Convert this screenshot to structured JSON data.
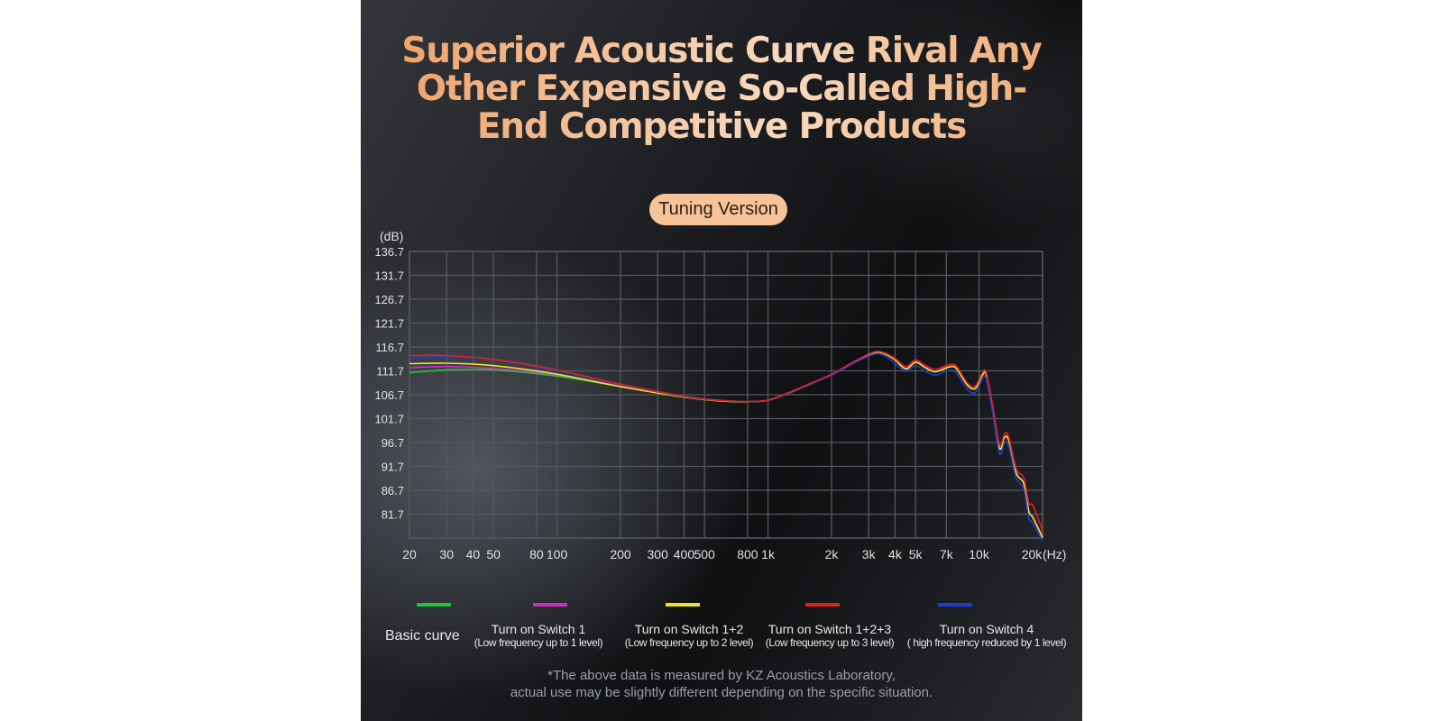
{
  "title": "Superior Acoustic Curve Rival Any Other Expensive So-Called High-End Competitive Products",
  "badge": "Tuning Version",
  "colors": {
    "title_gradient": [
      "#f0a36a",
      "#f8d9bd"
    ],
    "badge_bg": "#f7c49a",
    "grid": "#55585e",
    "axis_text": "#e0e0e0"
  },
  "chart_data": {
    "type": "line",
    "y_unit_label": "(dB)",
    "x_unit_label": "(Hz)",
    "x_scale": "log",
    "xlim": [
      20,
      20000
    ],
    "ylim": [
      76.7,
      136.7
    ],
    "grid": true,
    "y_ticks": [
      136.7,
      131.7,
      126.7,
      121.7,
      116.7,
      111.7,
      106.7,
      101.7,
      96.7,
      91.7,
      86.7,
      81.7
    ],
    "x_ticks": [
      {
        "value": 20,
        "label": "20"
      },
      {
        "value": 30,
        "label": "30"
      },
      {
        "value": 40,
        "label": "40"
      },
      {
        "value": 50,
        "label": "50"
      },
      {
        "value": 80,
        "label": "80"
      },
      {
        "value": 100,
        "label": "100"
      },
      {
        "value": 200,
        "label": "200"
      },
      {
        "value": 300,
        "label": "300"
      },
      {
        "value": 400,
        "label": "400"
      },
      {
        "value": 500,
        "label": "500"
      },
      {
        "value": 800,
        "label": "800"
      },
      {
        "value": 1000,
        "label": "1k"
      },
      {
        "value": 2000,
        "label": "2k"
      },
      {
        "value": 3000,
        "label": "3k"
      },
      {
        "value": 4000,
        "label": "4k"
      },
      {
        "value": 5000,
        "label": "5k"
      },
      {
        "value": 7000,
        "label": "7k"
      },
      {
        "value": 10000,
        "label": "10k"
      },
      {
        "value": 20000,
        "label": "20k"
      }
    ],
    "series": [
      {
        "name": "Basic curve",
        "color": "#22c43a",
        "points": [
          [
            20,
            111.3
          ],
          [
            30,
            111.9
          ],
          [
            50,
            111.9
          ],
          [
            100,
            110.6
          ],
          [
            200,
            108.4
          ],
          [
            400,
            106.2
          ],
          [
            600,
            105.4
          ],
          [
            900,
            105.3
          ],
          [
            1100,
            106.1
          ],
          [
            1500,
            108.5
          ],
          [
            2000,
            110.9
          ],
          [
            2500,
            113.3
          ],
          [
            3000,
            115.0
          ],
          [
            3300,
            115.6
          ],
          [
            3600,
            115.2
          ],
          [
            4000,
            114.0
          ],
          [
            4500,
            112.1
          ],
          [
            5000,
            113.5
          ],
          [
            5500,
            112.5
          ],
          [
            6200,
            111.5
          ],
          [
            7200,
            112.5
          ],
          [
            7800,
            112.2
          ],
          [
            8800,
            108.7
          ],
          [
            9600,
            108.0
          ],
          [
            10300,
            110.6
          ],
          [
            10800,
            110.9
          ],
          [
            11600,
            104.0
          ],
          [
            12500,
            95.5
          ],
          [
            13200,
            97.7
          ],
          [
            13800,
            97.2
          ],
          [
            15000,
            90.3
          ],
          [
            16300,
            88.1
          ],
          [
            17200,
            82.3
          ],
          [
            18000,
            81.0
          ],
          [
            20000,
            76.8
          ]
        ]
      },
      {
        "name": "Turn on Switch 1",
        "sub": "(Low frequency up to 1 level)",
        "color": "#cc2fc6",
        "points": [
          [
            20,
            112.4
          ],
          [
            30,
            112.6
          ],
          [
            50,
            112.2
          ],
          [
            100,
            110.9
          ],
          [
            200,
            108.5
          ],
          [
            400,
            106.3
          ],
          [
            600,
            105.5
          ],
          [
            900,
            105.3
          ],
          [
            1100,
            106.1
          ],
          [
            1500,
            108.5
          ],
          [
            2000,
            110.9
          ],
          [
            2500,
            113.3
          ],
          [
            3000,
            115.1
          ],
          [
            3300,
            115.7
          ],
          [
            3600,
            115.3
          ],
          [
            4000,
            114.1
          ],
          [
            4500,
            112.2
          ],
          [
            5000,
            113.6
          ],
          [
            5500,
            112.6
          ],
          [
            6200,
            111.6
          ],
          [
            7200,
            112.6
          ],
          [
            7800,
            112.3
          ],
          [
            8800,
            108.8
          ],
          [
            9600,
            108.1
          ],
          [
            10300,
            110.7
          ],
          [
            10800,
            111.0
          ],
          [
            11600,
            104.1
          ],
          [
            12500,
            95.6
          ],
          [
            13200,
            97.8
          ],
          [
            13800,
            97.3
          ],
          [
            15000,
            90.4
          ],
          [
            16300,
            88.2
          ],
          [
            17200,
            82.4
          ],
          [
            18000,
            81.1
          ],
          [
            20000,
            77.0
          ]
        ]
      },
      {
        "name": "Turn on Switch 1+2",
        "sub": "(Low frequency up to 2 level)",
        "color": "#f0e22a",
        "points": [
          [
            20,
            113.2
          ],
          [
            30,
            113.3
          ],
          [
            50,
            112.8
          ],
          [
            100,
            111.0
          ],
          [
            200,
            108.4
          ],
          [
            400,
            106.2
          ],
          [
            600,
            105.4
          ],
          [
            900,
            105.3
          ],
          [
            1100,
            106.1
          ],
          [
            1500,
            108.5
          ],
          [
            2000,
            110.9
          ],
          [
            2500,
            113.3
          ],
          [
            3000,
            115.0
          ],
          [
            3300,
            115.6
          ],
          [
            3600,
            115.2
          ],
          [
            4000,
            114.0
          ],
          [
            4500,
            112.1
          ],
          [
            5000,
            113.5
          ],
          [
            5500,
            112.5
          ],
          [
            6200,
            111.5
          ],
          [
            7200,
            112.5
          ],
          [
            7800,
            112.2
          ],
          [
            8800,
            108.7
          ],
          [
            9600,
            108.0
          ],
          [
            10300,
            110.6
          ],
          [
            10800,
            110.9
          ],
          [
            11600,
            104.0
          ],
          [
            12500,
            95.5
          ],
          [
            13200,
            97.7
          ],
          [
            13800,
            97.2
          ],
          [
            15000,
            90.3
          ],
          [
            16300,
            88.1
          ],
          [
            17200,
            82.3
          ],
          [
            18000,
            81.0
          ],
          [
            20000,
            76.8
          ]
        ]
      },
      {
        "name": "Turn on Switch 1+2+3",
        "sub": "(Low frequency up to 3 level)",
        "color": "#e0201e",
        "points": [
          [
            20,
            114.9
          ],
          [
            30,
            114.9
          ],
          [
            50,
            114.1
          ],
          [
            100,
            111.9
          ],
          [
            200,
            108.9
          ],
          [
            400,
            106.4
          ],
          [
            600,
            105.5
          ],
          [
            900,
            105.3
          ],
          [
            1100,
            106.2
          ],
          [
            1500,
            108.6
          ],
          [
            2000,
            111.0
          ],
          [
            2500,
            113.4
          ],
          [
            3000,
            115.2
          ],
          [
            3300,
            115.8
          ],
          [
            3600,
            115.4
          ],
          [
            4000,
            114.3
          ],
          [
            4500,
            112.6
          ],
          [
            5000,
            114.0
          ],
          [
            5500,
            113.0
          ],
          [
            6200,
            112.0
          ],
          [
            7200,
            113.0
          ],
          [
            7800,
            112.7
          ],
          [
            8800,
            109.2
          ],
          [
            9600,
            108.5
          ],
          [
            10300,
            111.1
          ],
          [
            10800,
            111.4
          ],
          [
            11600,
            104.6
          ],
          [
            12500,
            96.3
          ],
          [
            13200,
            98.5
          ],
          [
            13800,
            98.0
          ],
          [
            15000,
            91.2
          ],
          [
            16300,
            89.3
          ],
          [
            17200,
            84.0
          ],
          [
            18000,
            83.5
          ],
          [
            20000,
            78.2
          ]
        ]
      },
      {
        "name": "Turn on Switch 4",
        "sub": "( high frequency reduced by 1 level)",
        "color": "#1b3fd6",
        "points": [
          [
            20,
            114.4
          ],
          [
            30,
            114.6
          ],
          [
            50,
            114.1
          ],
          [
            100,
            111.7
          ],
          [
            200,
            108.8
          ],
          [
            400,
            106.3
          ],
          [
            600,
            105.5
          ],
          [
            900,
            105.3
          ],
          [
            1100,
            106.1
          ],
          [
            1500,
            108.5
          ],
          [
            2000,
            110.8
          ],
          [
            2500,
            113.1
          ],
          [
            3000,
            114.8
          ],
          [
            3300,
            115.3
          ],
          [
            3600,
            114.8
          ],
          [
            4000,
            113.3
          ],
          [
            4500,
            111.6
          ],
          [
            5000,
            112.8
          ],
          [
            5500,
            111.8
          ],
          [
            6200,
            110.8
          ],
          [
            7200,
            111.8
          ],
          [
            7800,
            111.3
          ],
          [
            8800,
            107.8
          ],
          [
            9600,
            107.2
          ],
          [
            10300,
            109.8
          ],
          [
            10800,
            110.1
          ],
          [
            11600,
            103.0
          ],
          [
            12500,
            94.4
          ],
          [
            13200,
            96.6
          ],
          [
            13800,
            96.1
          ],
          [
            15000,
            89.2
          ],
          [
            16300,
            86.9
          ],
          [
            17200,
            80.9
          ],
          [
            18000,
            79.8
          ],
          [
            20000,
            76.0
          ]
        ]
      }
    ]
  },
  "legend": {
    "basic": "Basic curve",
    "items": [
      {
        "main": "Turn on Switch 1",
        "sub": "(Low frequency up to 1 level)"
      },
      {
        "main": "Turn on Switch 1+2",
        "sub": "(Low frequency up to 2 level)"
      },
      {
        "main": "Turn on Switch 1+2+3",
        "sub": "(Low frequency up to 3 level)"
      },
      {
        "main": "Turn on Switch 4",
        "sub": "( high frequency reduced by 1 level)"
      }
    ]
  },
  "footnote": {
    "line1": "*The above data is measured by KZ Acoustics Laboratory,",
    "line2": "actual use may be slightly different depending on the specific situation."
  }
}
